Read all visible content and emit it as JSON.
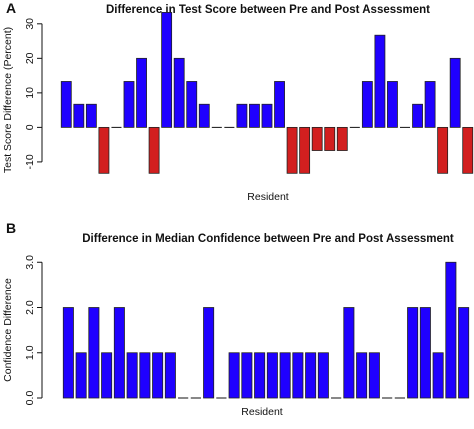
{
  "figure": {
    "panels": [
      "A",
      "B"
    ]
  },
  "chart_data": [
    {
      "type": "bar",
      "title": "Difference in Test Score between Pre and Post Assessment",
      "xlabel": "Resident",
      "ylabel": "Test Score Difference (Percent)",
      "ylim": [
        -13.5,
        34
      ],
      "yticks": [
        -10,
        0,
        10,
        20,
        30
      ],
      "grid": false,
      "positive_color": "#1f00ff",
      "negative_color": "#d21f1f",
      "values": [
        13.3,
        6.7,
        6.7,
        -13.3,
        0,
        13.3,
        20,
        -13.3,
        33.3,
        20,
        13.3,
        6.7,
        0,
        0,
        6.7,
        6.7,
        6.7,
        13.3,
        -13.3,
        -13.3,
        -6.7,
        -6.7,
        -6.7,
        0,
        13.3,
        26.7,
        13.3,
        0,
        6.7,
        13.3,
        -13.3,
        20,
        -13.3
      ]
    },
    {
      "type": "bar",
      "title": "Difference in Median Confidence between Pre and Post Assessment",
      "xlabel": "Resident",
      "ylabel": "Confidence Difference",
      "ylim": [
        0,
        3.05
      ],
      "yticks": [
        "0.0",
        "1.0",
        "2.0",
        "3.0"
      ],
      "grid": false,
      "bar_color": "#1f00ff",
      "values": [
        2,
        1,
        2,
        1,
        2,
        1,
        1,
        1,
        1,
        0,
        0,
        2,
        0,
        1,
        1,
        1,
        1,
        1,
        1,
        1,
        1,
        0,
        2,
        1,
        1,
        0,
        0,
        2,
        2,
        1,
        3,
        2
      ]
    }
  ]
}
